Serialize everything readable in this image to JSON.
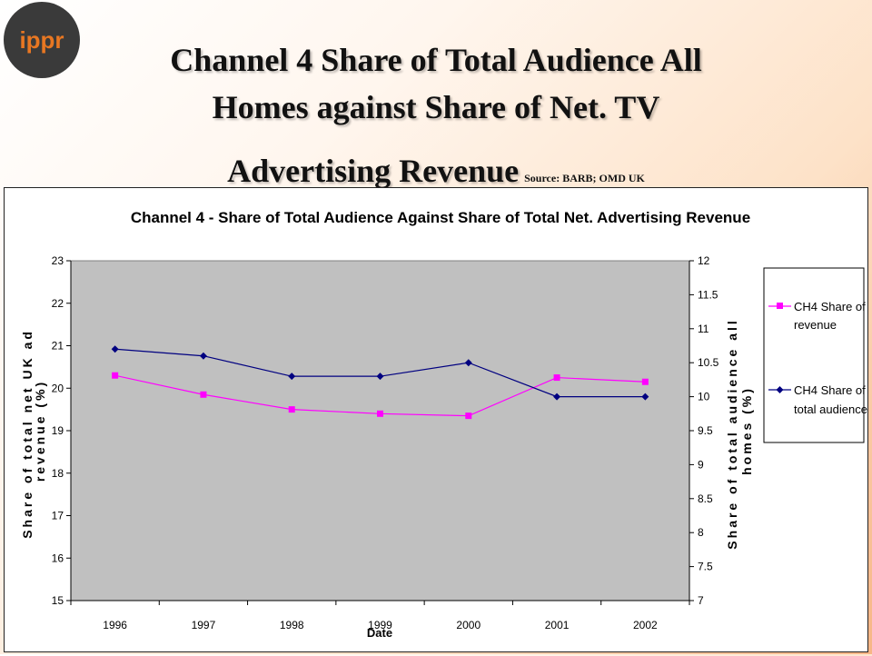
{
  "logo": {
    "text": "ippr",
    "color": "#3a3a3a",
    "accent": "#e87722"
  },
  "slide": {
    "title_line1": "Channel 4 Share of Total Audience All",
    "title_line2": "Homes against Share of Net. TV",
    "title_line3": "Advertising Revenue",
    "source": "Source: BARB; OMD UK"
  },
  "chart_data": {
    "type": "line",
    "title": "Channel 4 - Share of Total Audience Against Share of Total Net. Advertising Revenue",
    "xlabel": "Date",
    "ylabel_left_line1": "Share of total net UK ad",
    "ylabel_left_line2": "revenue (%)",
    "ylabel_right_line1": "Share of total audience all",
    "ylabel_right_line2": "homes (%)",
    "categories": [
      "1996",
      "1997",
      "1998",
      "1999",
      "2000",
      "2001",
      "2002"
    ],
    "y_left": {
      "min": 15,
      "max": 23,
      "ticks": [
        "15",
        "16",
        "17",
        "18",
        "19",
        "20",
        "21",
        "22",
        "23"
      ]
    },
    "y_right": {
      "min": 7,
      "max": 12,
      "ticks": [
        "7",
        "7.5",
        "8",
        "8.5",
        "9",
        "9.5",
        "10",
        "10.5",
        "11",
        "11.5",
        "12"
      ]
    },
    "grid": false,
    "plot_background": "#c0c0c0",
    "legend_position": "right",
    "series": [
      {
        "name": "CH4 Share of revenue",
        "legend_line1": "CH4 Share of",
        "legend_line2": "revenue",
        "axis": "left",
        "color": "#ff00ff",
        "marker": "square",
        "values": [
          20.3,
          19.85,
          19.5,
          19.4,
          19.35,
          20.25,
          20.15
        ]
      },
      {
        "name": "CH4 Share of total audience",
        "legend_line1": "CH4 Share of",
        "legend_line2": "total audience",
        "axis": "right",
        "color": "#000080",
        "marker": "diamond",
        "values": [
          10.7,
          10.6,
          10.3,
          10.3,
          10.5,
          10.0,
          10.0
        ]
      }
    ]
  }
}
